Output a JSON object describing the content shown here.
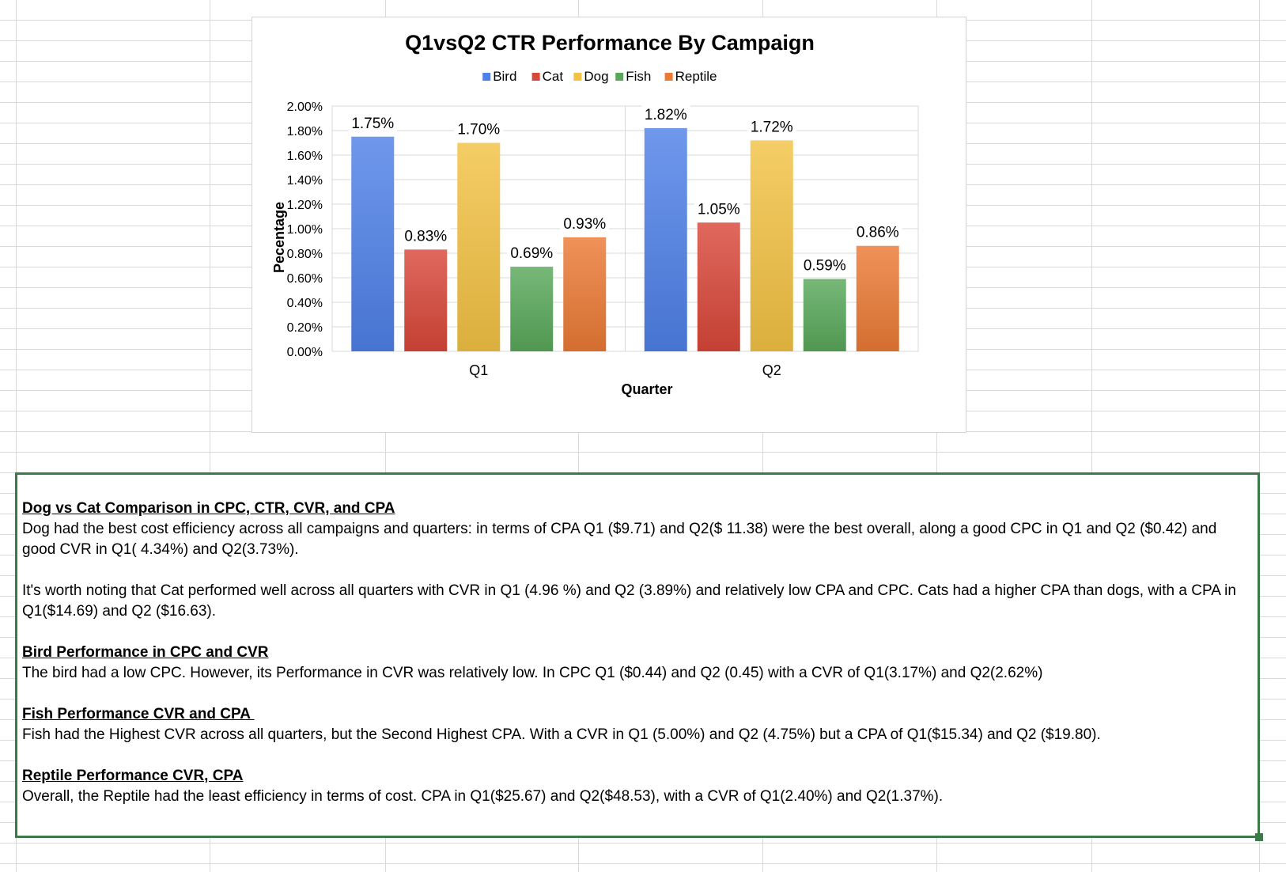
{
  "chart_data": {
    "type": "bar",
    "title": "Q1vsQ2 CTR Performance By Campaign",
    "xlabel": "Quarter",
    "ylabel": "Pecentage",
    "categories": [
      "Q1",
      "Q2"
    ],
    "ylim": [
      0,
      2.0
    ],
    "yticks": [
      "0.00%",
      "0.20%",
      "0.40%",
      "0.60%",
      "0.80%",
      "1.00%",
      "1.20%",
      "1.40%",
      "1.60%",
      "1.80%",
      "2.00%"
    ],
    "legend_position": "top",
    "grid": true,
    "series": [
      {
        "name": "Bird",
        "color": "#4f81e8",
        "values": [
          1.75,
          1.82
        ],
        "labels": [
          "1.75%",
          "1.82%"
        ]
      },
      {
        "name": "Cat",
        "color": "#d9473a",
        "values": [
          0.83,
          1.05
        ],
        "labels": [
          "0.83%",
          "1.05%"
        ]
      },
      {
        "name": "Dog",
        "color": "#f3c244",
        "values": [
          1.7,
          1.72
        ],
        "labels": [
          "1.70%",
          "1.72%"
        ]
      },
      {
        "name": "Fish",
        "color": "#59a85a",
        "values": [
          0.69,
          0.59
        ],
        "labels": [
          "0.69%",
          "0.59%"
        ]
      },
      {
        "name": "Reptile",
        "color": "#ec7a35",
        "values": [
          0.93,
          0.86
        ],
        "labels": [
          "0.93%",
          "0.86%"
        ]
      }
    ]
  },
  "notes": {
    "sections": [
      {
        "heading": "Dog vs Cat Comparison in CPC, CTR, CVR, and CPA",
        "paragraphs": [
          "Dog had the best cost efficiency across all campaigns and quarters: in terms of CPA Q1 ($9.71) and Q2($ 11.38) were the best overall, along a good CPC  in Q1 and Q2 ($0.42) and good CVR in Q1( 4.34%) and Q2(3.73%).",
          "It's worth noting that Cat performed well across all quarters with CVR in Q1 (4.96 %) and Q2 (3.89%) and relatively low CPA and CPC. Cats had a higher CPA than dogs, with a CPA in Q1($14.69) and Q2 ($16.63)."
        ]
      },
      {
        "heading": "Bird Performance in CPC and CVR",
        "paragraphs": [
          "The bird had a low CPC. However, its Performance in CVR was relatively low. In CPC Q1 ($0.44) and Q2 (0.45) with a CVR of Q1(3.17%) and Q2(2.62%)"
        ]
      },
      {
        "heading": "Fish Performance CVR and CPA ",
        "paragraphs": [
          "Fish had the Highest CVR across all quarters, but the Second Highest CPA. With a CVR in Q1 (5.00%) and Q2 (4.75%) but a CPA of Q1($15.34) and Q2 ($19.80)."
        ]
      },
      {
        "heading": "Reptile Performance CVR, CPA",
        "paragraphs": [
          "Overall, the Reptile had the least efficiency in terms of cost. CPA in Q1($25.67) and Q2($48.53), with a CVR of Q1(2.40%) and Q2(1.37%)."
        ]
      }
    ]
  }
}
